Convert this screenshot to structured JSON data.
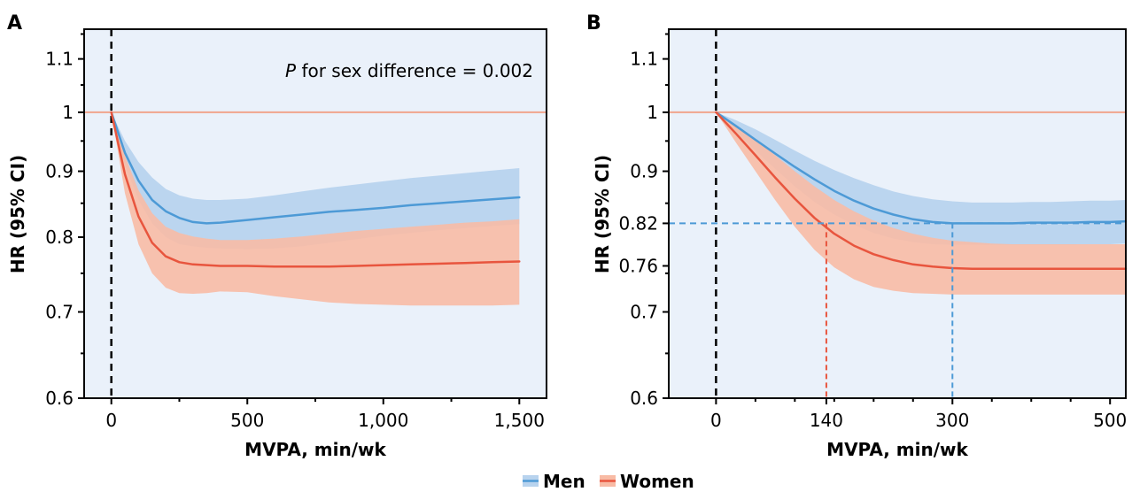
{
  "colors": {
    "men_line": "#4d9ad6",
    "men_band": "#b8d3ee",
    "women_line": "#e8553e",
    "women_band": "#f8bba5",
    "reference_line": "#f0a48c",
    "zero_line": "#000000",
    "plot_background": "#eaf1fa"
  },
  "legend": {
    "men_label": "Men",
    "women_label": "Women"
  },
  "chart_data": [
    {
      "panel": "A",
      "type": "line",
      "ylabel": "HR (95% CI)",
      "xlabel": "MVPA, min/wk",
      "scale_y": "log",
      "xlim": [
        -100,
        1600
      ],
      "ylim": [
        0.6,
        1.16
      ],
      "x_ticks": [
        0,
        500,
        1000,
        1500
      ],
      "x_tick_labels": [
        "0",
        "500",
        "1,000",
        "1,500"
      ],
      "y_ticks": [
        0.6,
        0.7,
        0.8,
        0.9,
        1,
        1.1
      ],
      "y_tick_labels": [
        "0.6",
        "0.7",
        "0.8",
        "0.9",
        "1",
        "1.1"
      ],
      "annotation_italic": "P",
      "annotation": "for sex difference = 0.002",
      "reference_hr": 1,
      "vline_x": 0,
      "x": [
        0,
        50,
        100,
        150,
        200,
        250,
        300,
        350,
        400,
        500,
        600,
        700,
        800,
        900,
        1000,
        1100,
        1200,
        1300,
        1400,
        1500
      ],
      "series": [
        {
          "name": "Men",
          "values": [
            1.0,
            0.93,
            0.885,
            0.855,
            0.838,
            0.828,
            0.822,
            0.82,
            0.821,
            0.825,
            0.829,
            0.833,
            0.837,
            0.84,
            0.843,
            0.847,
            0.85,
            0.853,
            0.856,
            0.859
          ],
          "lower": [
            1.0,
            0.91,
            0.855,
            0.82,
            0.8,
            0.79,
            0.787,
            0.785,
            0.784,
            0.783,
            0.784,
            0.787,
            0.792,
            0.797,
            0.802,
            0.806,
            0.81,
            0.813,
            0.816,
            0.819
          ],
          "upper": [
            1.0,
            0.95,
            0.915,
            0.89,
            0.872,
            0.862,
            0.857,
            0.855,
            0.855,
            0.857,
            0.862,
            0.868,
            0.874,
            0.879,
            0.884,
            0.889,
            0.893,
            0.897,
            0.901,
            0.905
          ]
        },
        {
          "name": "Women",
          "values": [
            1.0,
            0.895,
            0.83,
            0.792,
            0.773,
            0.765,
            0.762,
            0.761,
            0.76,
            0.76,
            0.759,
            0.759,
            0.759,
            0.76,
            0.761,
            0.762,
            0.763,
            0.764,
            0.765,
            0.766
          ],
          "lower": [
            1.0,
            0.865,
            0.79,
            0.75,
            0.731,
            0.724,
            0.723,
            0.724,
            0.726,
            0.725,
            0.72,
            0.716,
            0.712,
            0.71,
            0.709,
            0.708,
            0.708,
            0.708,
            0.708,
            0.709
          ],
          "upper": [
            1.0,
            0.925,
            0.87,
            0.835,
            0.815,
            0.806,
            0.801,
            0.798,
            0.796,
            0.796,
            0.798,
            0.801,
            0.805,
            0.809,
            0.812,
            0.815,
            0.818,
            0.821,
            0.823,
            0.826
          ]
        }
      ]
    },
    {
      "panel": "B",
      "type": "line",
      "ylabel": "HR (95% CI)",
      "xlabel": "MVPA, min/wk",
      "scale_y": "log",
      "xlim": [
        -60,
        520
      ],
      "ylim": [
        0.6,
        1.16
      ],
      "x_ticks": [
        0,
        140,
        300,
        500
      ],
      "x_tick_labels": [
        "0",
        "140",
        "300",
        "500"
      ],
      "y_ticks": [
        0.6,
        0.7,
        0.76,
        0.82,
        0.9,
        1,
        1.1
      ],
      "y_tick_labels": [
        "0.6",
        "0.7",
        "0.76",
        "0.82",
        "0.9",
        "1",
        "1.1"
      ],
      "reference_hr": 1,
      "vline_x": 0,
      "guide_hr": 0.82,
      "guide_women_x": 140,
      "guide_men_x": 300,
      "x": [
        0,
        25,
        50,
        75,
        100,
        125,
        150,
        175,
        200,
        225,
        250,
        275,
        300,
        325,
        350,
        375,
        400,
        425,
        450,
        475,
        500,
        520
      ],
      "series": [
        {
          "name": "Men",
          "values": [
            1.0,
            0.976,
            0.952,
            0.929,
            0.907,
            0.887,
            0.869,
            0.854,
            0.842,
            0.833,
            0.826,
            0.822,
            0.82,
            0.82,
            0.82,
            0.82,
            0.821,
            0.821,
            0.821,
            0.822,
            0.822,
            0.823
          ],
          "lower": [
            1.0,
            0.966,
            0.934,
            0.904,
            0.876,
            0.852,
            0.833,
            0.818,
            0.806,
            0.798,
            0.793,
            0.79,
            0.789,
            0.789,
            0.789,
            0.789,
            0.789,
            0.789,
            0.789,
            0.79,
            0.79,
            0.791
          ],
          "upper": [
            1.0,
            0.986,
            0.97,
            0.952,
            0.934,
            0.917,
            0.902,
            0.889,
            0.878,
            0.868,
            0.861,
            0.856,
            0.853,
            0.851,
            0.851,
            0.851,
            0.852,
            0.852,
            0.853,
            0.854,
            0.854,
            0.855
          ]
        },
        {
          "name": "Women",
          "values": [
            1.0,
            0.963,
            0.926,
            0.89,
            0.857,
            0.828,
            0.805,
            0.788,
            0.776,
            0.768,
            0.762,
            0.759,
            0.757,
            0.756,
            0.756,
            0.756,
            0.756,
            0.756,
            0.756,
            0.756,
            0.756,
            0.756
          ],
          "lower": [
            1.0,
            0.948,
            0.9,
            0.855,
            0.815,
            0.782,
            0.758,
            0.742,
            0.732,
            0.727,
            0.724,
            0.723,
            0.722,
            0.722,
            0.722,
            0.722,
            0.722,
            0.722,
            0.722,
            0.722,
            0.722,
            0.722
          ],
          "upper": [
            1.0,
            0.978,
            0.952,
            0.926,
            0.9,
            0.876,
            0.855,
            0.838,
            0.824,
            0.813,
            0.805,
            0.799,
            0.795,
            0.793,
            0.791,
            0.79,
            0.79,
            0.79,
            0.79,
            0.79,
            0.79,
            0.79
          ]
        }
      ]
    }
  ]
}
